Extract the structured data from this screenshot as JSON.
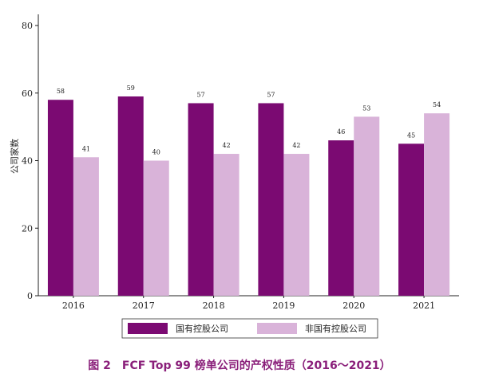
{
  "caption": "图 2　FCF Top 99 榜单公司的产权性质（2016～2021）",
  "chart_data": {
    "type": "bar",
    "ylabel": "公司家数",
    "xlabel": "",
    "ylim": [
      0,
      80
    ],
    "yticks": [
      0,
      20,
      40,
      60,
      80
    ],
    "categories": [
      "2016",
      "2017",
      "2018",
      "2019",
      "2020",
      "2021"
    ],
    "series": [
      {
        "name": "国有控股公司",
        "color": "#7b0a72",
        "values": [
          58,
          59,
          57,
          57,
          46,
          45
        ]
      },
      {
        "name": "非国有控股公司",
        "color": "#d9b3d9",
        "values": [
          41,
          40,
          42,
          42,
          53,
          54
        ]
      }
    ],
    "grid": false,
    "legend_position": "bottom"
  }
}
